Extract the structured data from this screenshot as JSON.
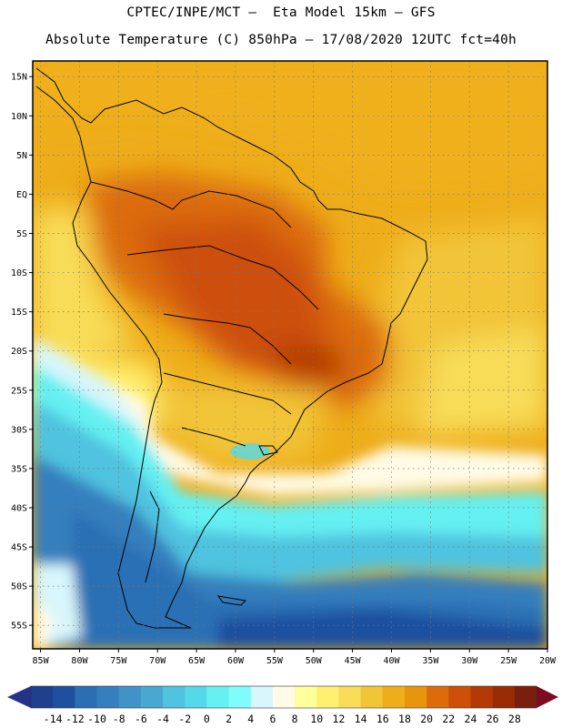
{
  "header": {
    "line1": "CPTEC/INPE/MCT –  Eta Model 15km – GFS",
    "line2": "Absolute Temperature (C) 850hPa – 17/08/2020 12UTC fct=40h"
  },
  "map": {
    "lon_range": [
      -86,
      -20
    ],
    "lat_range": [
      -58,
      17
    ],
    "grid_lines": true,
    "lat_labels": [
      "15N",
      "10N",
      "5N",
      "EQ",
      "5S",
      "10S",
      "15S",
      "20S",
      "25S",
      "30S",
      "35S",
      "40S",
      "45S",
      "50S",
      "55S"
    ],
    "lat_values": [
      15,
      10,
      5,
      0,
      -5,
      -10,
      -15,
      -20,
      -25,
      -30,
      -35,
      -40,
      -45,
      -50,
      -55
    ],
    "lon_labels": [
      "85W",
      "80W",
      "75W",
      "70W",
      "65W",
      "60W",
      "55W",
      "50W",
      "45W",
      "40W",
      "35W",
      "30W",
      "25W",
      "20W"
    ],
    "lon_values": [
      -85,
      -80,
      -75,
      -70,
      -65,
      -60,
      -55,
      -50,
      -45,
      -40,
      -35,
      -30,
      -25,
      -20
    ]
  },
  "colorbar": {
    "labels": [
      "-14",
      "-12",
      "-10",
      "-8",
      "-6",
      "-4",
      "-2",
      "0",
      "2",
      "4",
      "6",
      "8",
      "10",
      "12",
      "14",
      "16",
      "18",
      "20",
      "22",
      "24",
      "26",
      "28"
    ],
    "colors": [
      "#1f3f8f",
      "#1f4f9f",
      "#2a6fb4",
      "#357fbe",
      "#3f93c8",
      "#48a8d2",
      "#4fc3df",
      "#55d9ea",
      "#65f0f2",
      "#7ffcfc",
      "#d8f6fb",
      "#fffbe6",
      "#ffff9c",
      "#fff070",
      "#f8dc58",
      "#f2c438",
      "#eead1a",
      "#e8940d",
      "#dc6c0a",
      "#cd4f08",
      "#b33a06",
      "#9a2c05",
      "#7a1f10"
    ],
    "under_color": "#24338a",
    "over_color": "#800a22"
  }
}
